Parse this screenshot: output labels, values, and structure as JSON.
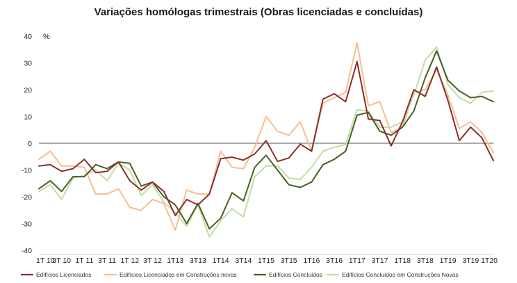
{
  "chart_data": {
    "type": "line",
    "title": "Variações homólogas trimestrais (Obras licenciadas e concluídas)",
    "y_unit": "%",
    "ylim": [
      -40,
      40
    ],
    "y_ticks": [
      40,
      30,
      20,
      10,
      0,
      -10,
      -20,
      -30,
      -40
    ],
    "grid": false,
    "legend_position": "bottom",
    "x": [
      "1T10",
      "2T10",
      "3T10",
      "4T10",
      "1T11",
      "2T11",
      "3T11",
      "4T11",
      "1T12",
      "2T12",
      "3T12",
      "4T12",
      "1T13",
      "2T13",
      "3T13",
      "4T13",
      "1T14",
      "2T14",
      "3T14",
      "4T14",
      "1T15",
      "2T15",
      "3T15",
      "4T15",
      "1T16",
      "2T16",
      "3T16",
      "4T16",
      "1T17",
      "2T17",
      "3T17",
      "4T17",
      "1T18",
      "2T18",
      "3T18",
      "4T18",
      "1T19",
      "2T19",
      "3T19",
      "4T19",
      "1T20"
    ],
    "x_tick_labels": [
      "1T 10",
      "3T 10",
      "1T 11",
      "3T 11",
      "1T 12",
      "3T 12",
      "1T13",
      "3T13",
      "1T14",
      "3T14",
      "1T15",
      "3T15",
      "1T16",
      "3T16",
      "1T17",
      "3T17",
      "1T18",
      "3T18",
      "1T19",
      "3T19",
      "1T20"
    ],
    "series": [
      {
        "name": "Edifícios Licenciados",
        "color": "#8B2D2D",
        "values": [
          -8.5,
          -8,
          -10.5,
          -9.5,
          -6,
          -11,
          -10.5,
          -7,
          -14,
          -17.5,
          -14.5,
          -18,
          -27,
          -21,
          -23,
          -19,
          -5.8,
          -5.2,
          -6.3,
          -4,
          1,
          -6.8,
          -5.5,
          -0.3,
          -3,
          16.5,
          18.5,
          15.5,
          30.5,
          9,
          8.5,
          -1,
          8,
          20,
          17.5,
          28.5,
          16,
          1,
          6,
          2,
          -6.5
        ]
      },
      {
        "name": "Edifícios Licenciados em Construções novas",
        "color": "#F5BE8F",
        "values": [
          -6,
          -3,
          -8.5,
          -8.5,
          -9,
          -19,
          -19,
          -17,
          -24,
          -25,
          -21,
          -22.5,
          -32.5,
          -17.5,
          -19,
          -19,
          -3,
          -9,
          -9.5,
          -1.5,
          10,
          4.5,
          3,
          8,
          -3,
          15,
          17,
          19,
          37.5,
          14,
          15.5,
          4,
          6,
          19,
          20,
          27.5,
          18,
          5.5,
          8,
          4,
          -3.5
        ]
      },
      {
        "name": "Edifícios Concluídos",
        "color": "#4A5E23",
        "values": [
          -17,
          -14,
          -18,
          -12.5,
          -12.5,
          -8,
          -9.5,
          -7,
          -7.5,
          -16,
          -14.5,
          -20,
          -23,
          -30,
          -22.5,
          -32,
          -28,
          -18.5,
          -21.5,
          -9,
          -4.5,
          -10,
          -15.5,
          -16.5,
          -14.5,
          -8,
          -6,
          -3,
          10.5,
          11.5,
          4.5,
          3,
          6,
          12,
          24.5,
          34.5,
          23.5,
          19.5,
          17,
          17.5,
          15.5
        ]
      },
      {
        "name": "Edifícios Concluídos em Construções Novas",
        "color": "#C2DDA4",
        "values": [
          -18,
          -15.5,
          -21,
          -13,
          -12,
          -10,
          -14,
          -7.5,
          -10,
          -19.5,
          -15.5,
          -22,
          -26,
          -31,
          -23,
          -35,
          -29,
          -24.5,
          -27.5,
          -12.5,
          -8.5,
          -8.5,
          -13,
          -13.5,
          -9,
          -3,
          -1.5,
          -0.5,
          12.5,
          12,
          6,
          6,
          8,
          18,
          31,
          36,
          22,
          17,
          15,
          19,
          19.5
        ]
      }
    ]
  }
}
